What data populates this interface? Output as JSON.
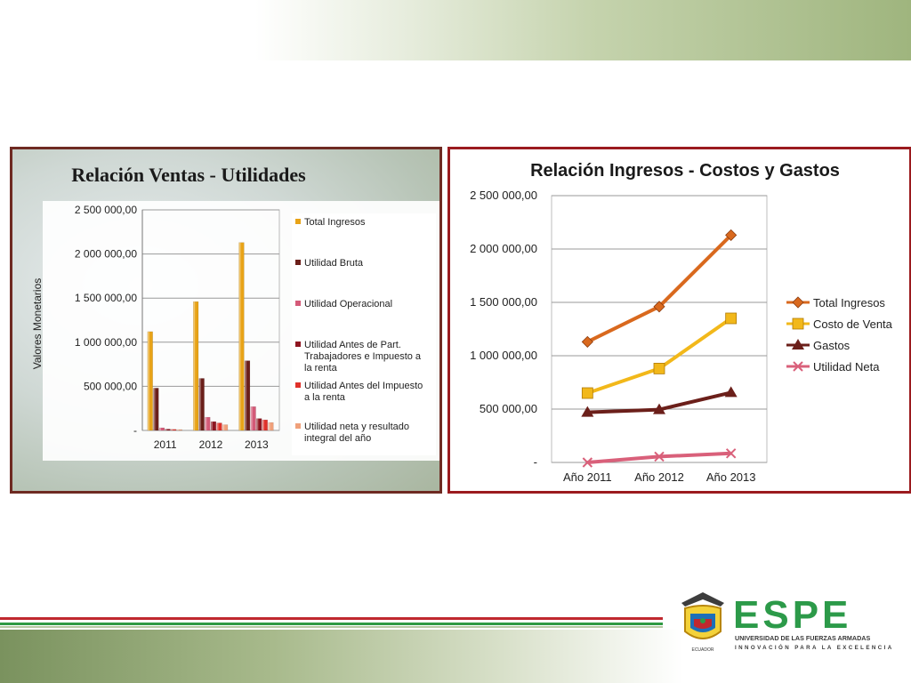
{
  "left_chart": {
    "title": "Relación Ventas - Utilidades",
    "ylabel": "Valores Monetarios",
    "yticks": [
      "-",
      "500 000,00",
      "1 000 000,00",
      "1 500 000,00",
      "2 000 000,00",
      "2 500 000,00"
    ],
    "legend": [
      "Total Ingresos",
      "Utilidad Bruta",
      "Utilidad Operacional",
      "Utilidad Antes de Part. Trabajadores e Impuesto a la renta",
      "Utilidad Antes del Impuesto a la renta",
      "Utilidad neta y resultado integral del año"
    ]
  },
  "right_chart": {
    "title": "Relación Ingresos - Costos y Gastos",
    "yticks": [
      "-",
      "500 000,00",
      "1 000 000,00",
      "1 500 000,00",
      "2 000 000,00",
      "2 500 000,00"
    ],
    "legend": [
      "Total Ingresos",
      "Costo de Venta",
      "Gastos",
      "Utilidad Neta"
    ]
  },
  "chart_data": [
    {
      "type": "bar",
      "title": "Relación Ventas - Utilidades",
      "xlabel": "",
      "ylabel": "Valores Monetarios",
      "ylim": [
        0,
        2500000
      ],
      "grid": true,
      "legend_position": "right",
      "categories": [
        "2011",
        "2012",
        "2013"
      ],
      "series": [
        {
          "name": "Total Ingresos",
          "color": "#e8a317",
          "values": [
            1120000,
            1460000,
            2130000
          ]
        },
        {
          "name": "Utilidad Bruta",
          "color": "#6b1f1a",
          "values": [
            480000,
            590000,
            790000
          ]
        },
        {
          "name": "Utilidad Operacional",
          "color": "#d45a78",
          "values": [
            30000,
            150000,
            270000
          ]
        },
        {
          "name": "Utilidad Antes de Part. Trabajadores e Impuesto a la renta",
          "color": "#8e1520",
          "values": [
            15000,
            100000,
            135000
          ]
        },
        {
          "name": "Utilidad Antes del Impuesto a la renta",
          "color": "#e0312a",
          "values": [
            12000,
            85000,
            120000
          ]
        },
        {
          "name": "Utilidad neta y resultado integral del año",
          "color": "#f0a07a",
          "values": [
            10000,
            65000,
            90000
          ]
        }
      ]
    },
    {
      "type": "line",
      "title": "Relación Ingresos - Costos y Gastos",
      "xlabel": "",
      "ylabel": "",
      "ylim": [
        0,
        2500000
      ],
      "grid": true,
      "legend_position": "right",
      "categories": [
        "Año 2011",
        "Año 2012",
        "Año 2013"
      ],
      "series": [
        {
          "name": "Total Ingresos",
          "color": "#d9691e",
          "marker": "diamond",
          "values": [
            1130000,
            1460000,
            2130000
          ]
        },
        {
          "name": "Costo de Venta",
          "color": "#f2b81a",
          "marker": "square",
          "values": [
            650000,
            880000,
            1350000
          ]
        },
        {
          "name": "Gastos",
          "color": "#6b1f1a",
          "marker": "triangle",
          "values": [
            470000,
            495000,
            655000
          ]
        },
        {
          "name": "Utilidad Neta",
          "color": "#d9607a",
          "marker": "x",
          "values": [
            0,
            55000,
            85000
          ]
        }
      ]
    }
  ],
  "logo": {
    "name": "ESPE",
    "subtitle": "UNIVERSIDAD DE LAS FUERZAS ARMADAS",
    "tagline": "INNOVACIÓN PARA LA EXCELENCIA",
    "seal_text": "ECUADOR",
    "color": "#2c9a49"
  }
}
